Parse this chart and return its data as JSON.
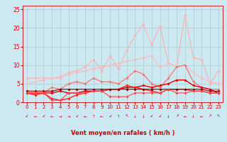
{
  "x": [
    0,
    1,
    2,
    3,
    4,
    5,
    6,
    7,
    8,
    9,
    10,
    11,
    12,
    13,
    14,
    15,
    16,
    17,
    18,
    19,
    20,
    21,
    22,
    23
  ],
  "series": [
    {
      "color": "#ffb0b0",
      "linewidth": 0.8,
      "markersize": 2.0,
      "values": [
        6.5,
        6.5,
        6.5,
        6.5,
        6.5,
        8.0,
        8.5,
        9.5,
        11.5,
        8.5,
        12.5,
        9.0,
        14.0,
        18.0,
        21.0,
        15.5,
        20.5,
        10.5,
        9.5,
        23.5,
        12.0,
        11.5,
        5.0,
        8.5
      ]
    },
    {
      "color": "#ffb8b8",
      "linewidth": 0.8,
      "markersize": 2.0,
      "values": [
        5.0,
        5.5,
        6.0,
        6.5,
        7.0,
        7.5,
        8.0,
        8.5,
        9.0,
        9.5,
        10.0,
        10.5,
        11.0,
        11.5,
        12.0,
        12.5,
        9.5,
        10.5,
        9.5,
        10.0,
        8.0,
        6.5,
        5.5,
        5.0
      ]
    },
    {
      "color": "#ff7070",
      "linewidth": 0.9,
      "markersize": 2.0,
      "values": [
        2.5,
        2.0,
        2.5,
        4.0,
        3.5,
        5.0,
        5.5,
        5.0,
        6.5,
        5.5,
        5.5,
        5.0,
        6.5,
        8.5,
        7.5,
        5.0,
        4.0,
        6.5,
        9.5,
        10.0,
        5.5,
        4.0,
        3.5,
        3.5
      ]
    },
    {
      "color": "#dd0000",
      "linewidth": 1.0,
      "markersize": 2.0,
      "values": [
        2.5,
        2.5,
        2.5,
        2.5,
        3.0,
        2.5,
        2.5,
        3.0,
        3.0,
        3.0,
        3.5,
        3.5,
        4.0,
        4.0,
        4.5,
        4.0,
        4.5,
        5.0,
        6.0,
        6.0,
        4.5,
        4.0,
        3.5,
        2.5
      ]
    },
    {
      "color": "#ff2020",
      "linewidth": 1.0,
      "markersize": 2.0,
      "values": [
        2.5,
        2.0,
        2.5,
        1.0,
        0.5,
        1.0,
        2.0,
        2.5,
        3.0,
        3.0,
        3.5,
        3.5,
        4.5,
        4.0,
        3.5,
        3.0,
        2.5,
        3.5,
        3.5,
        3.5,
        3.0,
        3.0,
        2.5,
        2.5
      ]
    },
    {
      "color": "#880000",
      "linewidth": 0.8,
      "markersize": 2.0,
      "values": [
        3.0,
        3.0,
        3.0,
        3.0,
        3.5,
        3.5,
        3.5,
        3.5,
        3.5,
        3.5,
        3.5,
        3.5,
        3.5,
        3.5,
        3.5,
        3.5,
        3.5,
        3.5,
        3.5,
        3.5,
        3.5,
        3.5,
        3.0,
        3.0
      ]
    },
    {
      "color": "#ff4444",
      "linewidth": 0.8,
      "markersize": 2.0,
      "values": [
        2.5,
        2.5,
        2.5,
        0.5,
        0.5,
        2.5,
        2.5,
        2.5,
        3.0,
        3.0,
        1.5,
        1.5,
        1.5,
        2.5,
        2.5,
        2.5,
        2.5,
        3.5,
        2.5,
        2.5,
        3.0,
        3.0,
        2.5,
        2.5
      ]
    }
  ],
  "wind_arrows": [
    "↙",
    "←",
    "↙",
    "←",
    "→",
    "→",
    "↙",
    "←",
    "↑",
    "←",
    "↙",
    "↑",
    "↖",
    "↓",
    "↓",
    "↙",
    "↙",
    "↓",
    "↗",
    "←",
    "↓",
    "←",
    "↗",
    "↖"
  ],
  "xlabel": "Vent moyen/en rafales ( km/h )",
  "ylim": [
    0,
    26
  ],
  "xlim": [
    -0.5,
    23.5
  ],
  "yticks": [
    0,
    5,
    10,
    15,
    20,
    25
  ],
  "xticks": [
    0,
    1,
    2,
    3,
    4,
    5,
    6,
    7,
    8,
    9,
    10,
    11,
    12,
    13,
    14,
    15,
    16,
    17,
    18,
    19,
    20,
    21,
    22,
    23
  ],
  "bg_color": "#cce8f0",
  "grid_color": "#aacccc",
  "label_color": "#cc0000",
  "axis_color": "#cc0000"
}
